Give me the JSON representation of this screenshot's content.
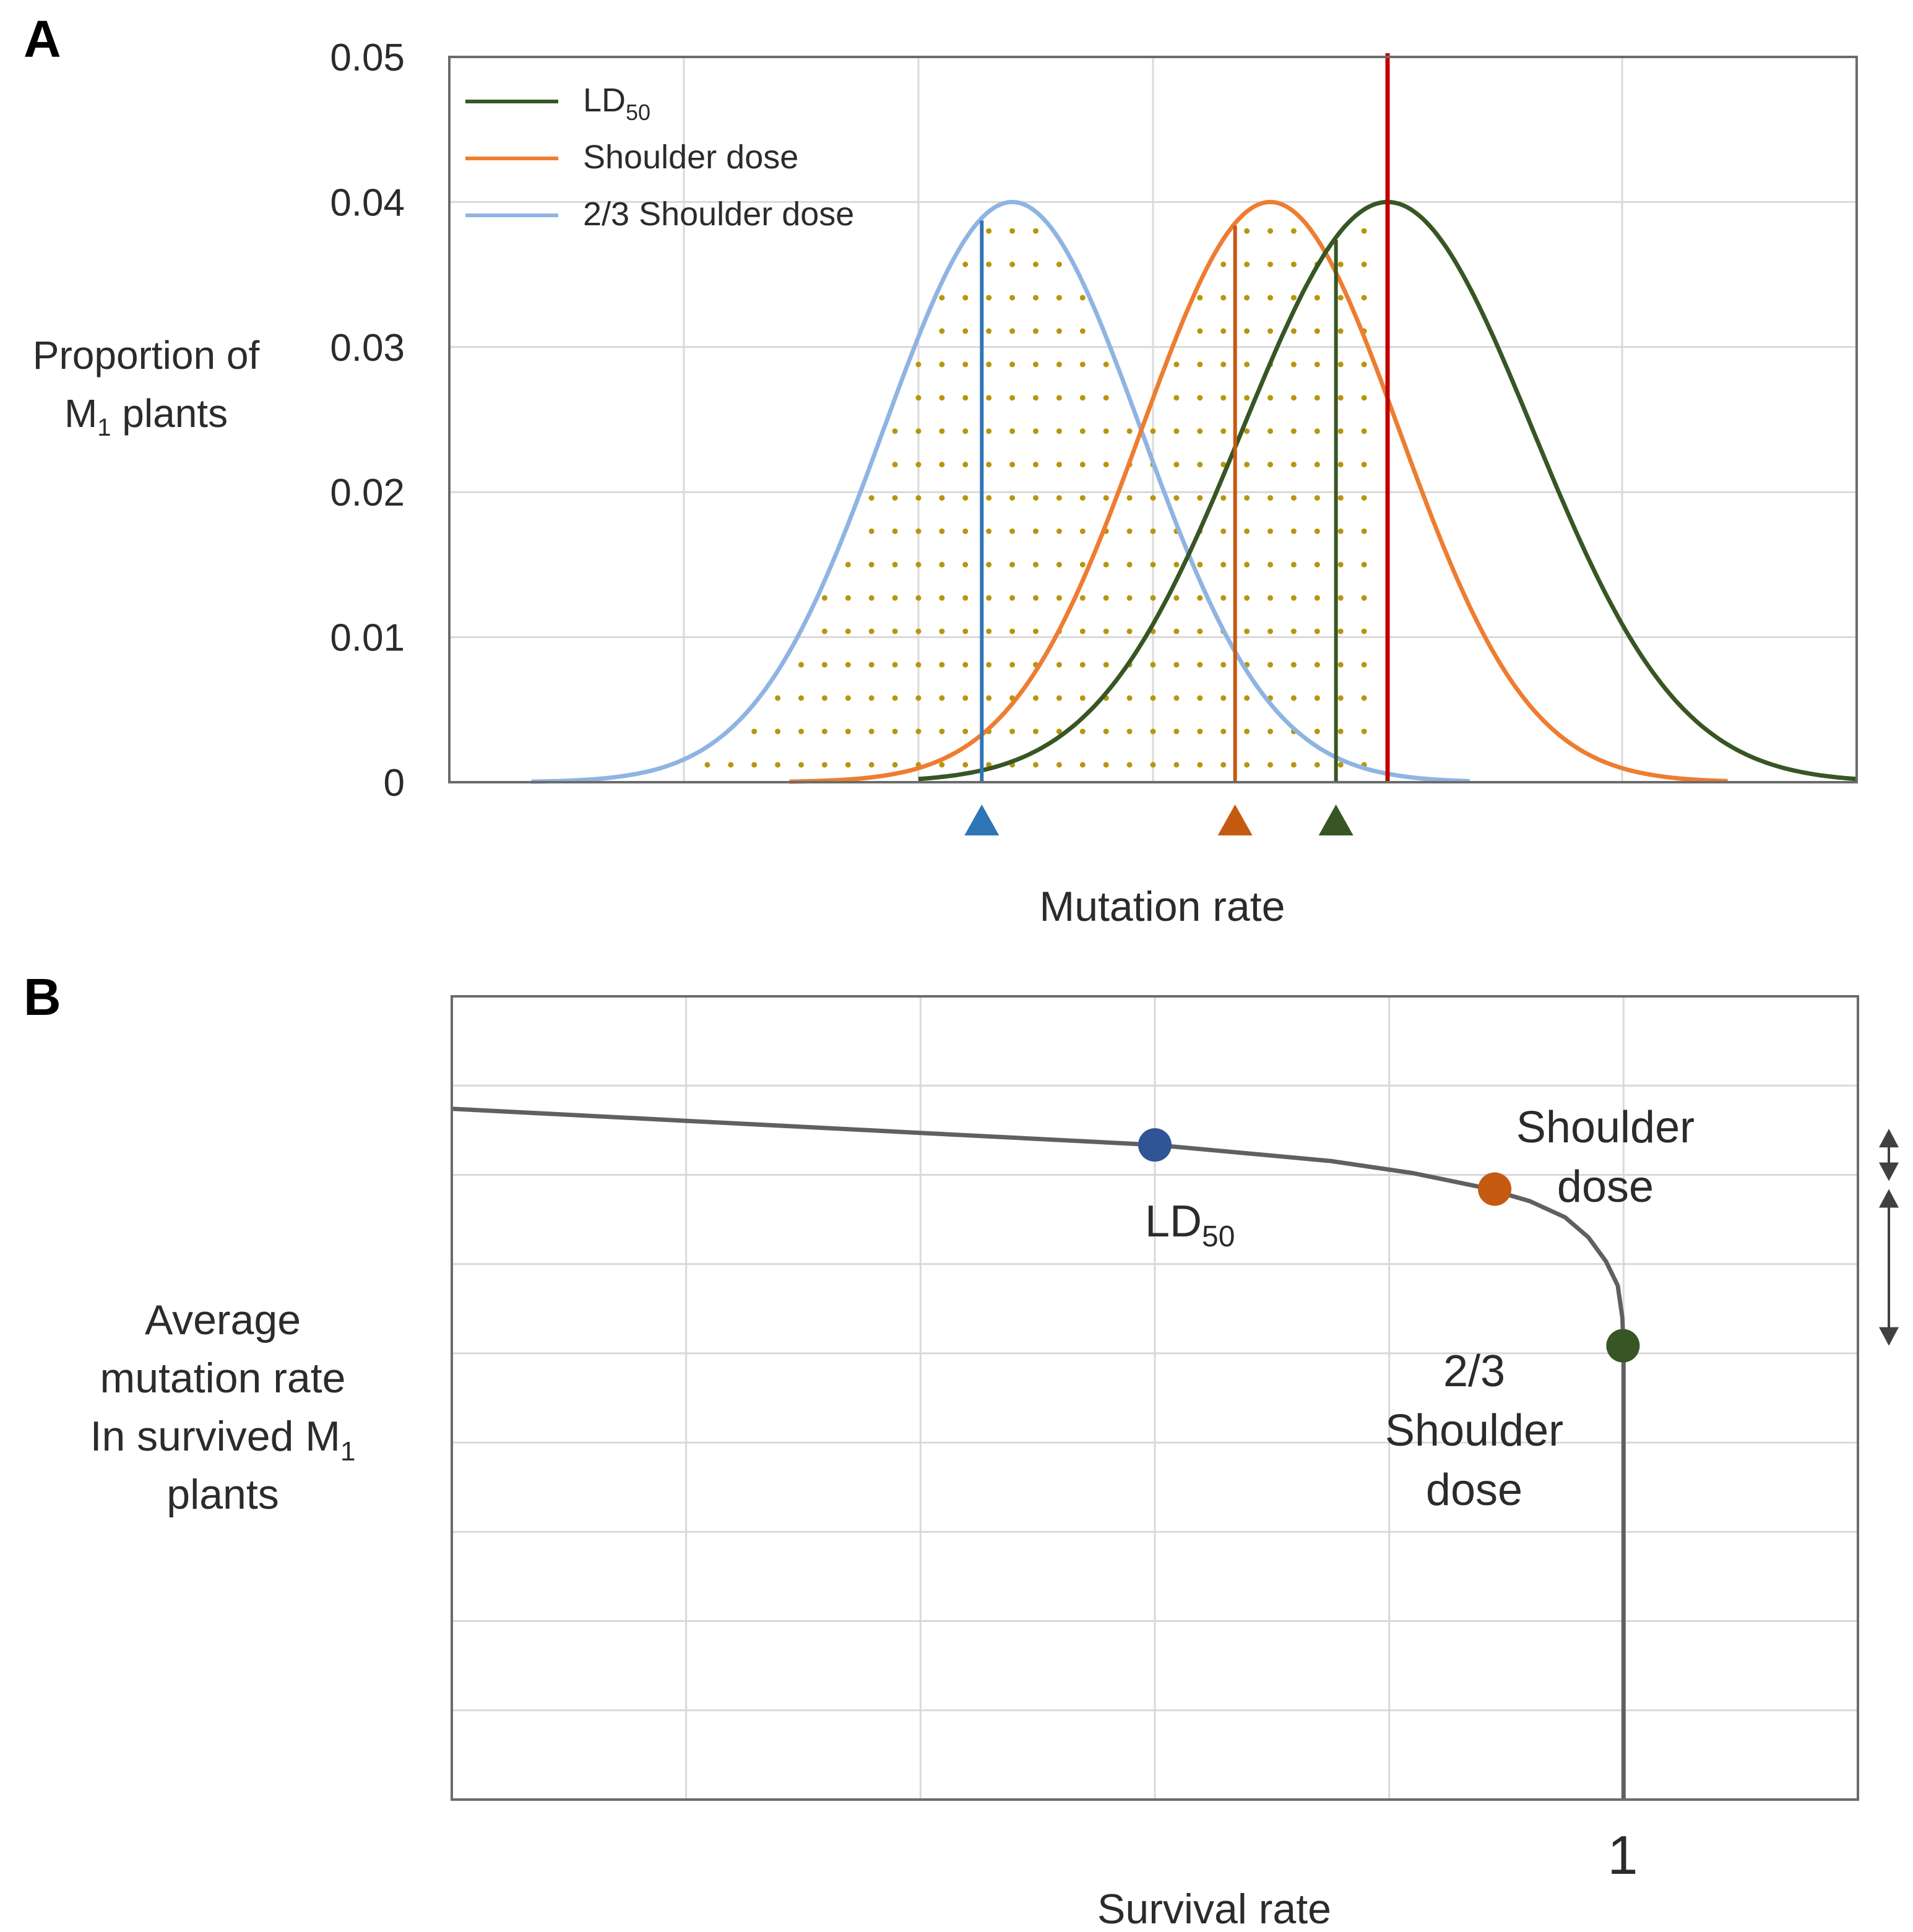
{
  "panels": {
    "a": {
      "letter": "A"
    },
    "b": {
      "letter": "B"
    }
  },
  "chart_data": [
    {
      "panel": "A",
      "type": "line",
      "title": "",
      "xlabel": "Mutation rate",
      "ylabel_line1": "Proportion of",
      "ylabel_line2_main": "M",
      "ylabel_line2_sub": "1",
      "ylabel_line2_tail": " plants",
      "ylim": [
        0,
        0.05
      ],
      "yticks": [
        "0",
        "0.01",
        "0.02",
        "0.03",
        "0.04",
        "0.05"
      ],
      "xlim": [
        0,
        6
      ],
      "x_ticks_shown": false,
      "grid": true,
      "legend_position": "top-left",
      "legend": [
        {
          "main": "LD",
          "sub": "50",
          "color": "#375623"
        },
        {
          "main": "Shoulder dose",
          "sub": "",
          "color": "#ED7D31"
        },
        {
          "main": "2/3 Shoulder dose",
          "sub": "",
          "color": "#8FB4E3"
        }
      ],
      "series": [
        {
          "name": "2/3 Shoulder dose",
          "distribution": "normal",
          "mean": 2.4,
          "sd": 0.55,
          "peak": 0.04,
          "x_range": [
            0.35,
            4.35
          ],
          "color": "#8FB4E3"
        },
        {
          "name": "Shoulder dose",
          "distribution": "normal",
          "mean": 3.5,
          "sd": 0.55,
          "peak": 0.04,
          "x_range": [
            1.45,
            5.45
          ],
          "color": "#ED7D31"
        },
        {
          "name": "LD50",
          "distribution": "normal",
          "mean": 4.0,
          "sd": 0.62,
          "peak": 0.04,
          "x_range": [
            2.0,
            6.0
          ],
          "color": "#375623"
        }
      ],
      "survival_threshold": {
        "x": 4.0,
        "color": "#C00000"
      },
      "survivor_means": [
        {
          "name": "2/3 Shoulder dose",
          "x": 2.27,
          "color": "#2E75B6"
        },
        {
          "name": "Shoulder dose",
          "x": 3.35,
          "color": "#C55A11"
        },
        {
          "name": "LD50",
          "x": 3.78,
          "color": "#375623"
        }
      ],
      "dotted_region": {
        "x_from": 1.1,
        "x_to": 3.95,
        "color": "#B8960C",
        "description": "stippled area under the curves to the left of the threshold"
      }
    },
    {
      "panel": "B",
      "type": "line",
      "title": "",
      "xlabel": "Survival rate",
      "ylabel_lines": [
        "Average",
        "mutation rate"
      ],
      "ylabel_line3_main": "In survived M",
      "ylabel_line3_sub": "1",
      "ylabel_line4": "plants",
      "x_tick_label": "1",
      "xlim": [
        0,
        1.2
      ],
      "ylim": [
        0,
        1
      ],
      "grid": true,
      "series": [
        {
          "name": "dose-response curve",
          "color": "#606060",
          "points": [
            [
              0.0,
              0.86
            ],
            [
              0.2,
              0.845
            ],
            [
              0.4,
              0.83
            ],
            [
              0.6,
              0.815
            ],
            [
              0.75,
              0.795
            ],
            [
              0.82,
              0.78
            ],
            [
              0.88,
              0.762
            ],
            [
              0.92,
              0.745
            ],
            [
              0.95,
              0.725
            ],
            [
              0.97,
              0.7
            ],
            [
              0.985,
              0.67
            ],
            [
              0.995,
              0.64
            ],
            [
              0.999,
              0.6
            ],
            [
              1.0,
              0.56
            ],
            [
              1.0,
              0.4
            ],
            [
              1.0,
              0.2
            ],
            [
              1.0,
              0.0
            ]
          ]
        }
      ],
      "markers": [
        {
          "name": "LD50",
          "x": 0.6,
          "y": 0.815,
          "color": "#2F5597",
          "label_main": "LD",
          "label_sub": "50"
        },
        {
          "name": "Shoulder dose",
          "x": 0.89,
          "y": 0.76,
          "color": "#C55A11",
          "label_lines": [
            "Shoulder",
            "dose"
          ]
        },
        {
          "name": "2/3 Shoulder dose",
          "x": 0.9995,
          "y": 0.565,
          "color": "#375623",
          "label_lines": [
            "2/3",
            "Shoulder",
            "dose"
          ]
        }
      ],
      "range_arrows": [
        {
          "y_from": 0.835,
          "y_to": 0.77,
          "meaning": "difference between LD50 and Shoulder dose"
        },
        {
          "y_from": 0.76,
          "y_to": 0.565,
          "meaning": "difference between Shoulder dose and 2/3 Shoulder dose"
        }
      ]
    }
  ]
}
